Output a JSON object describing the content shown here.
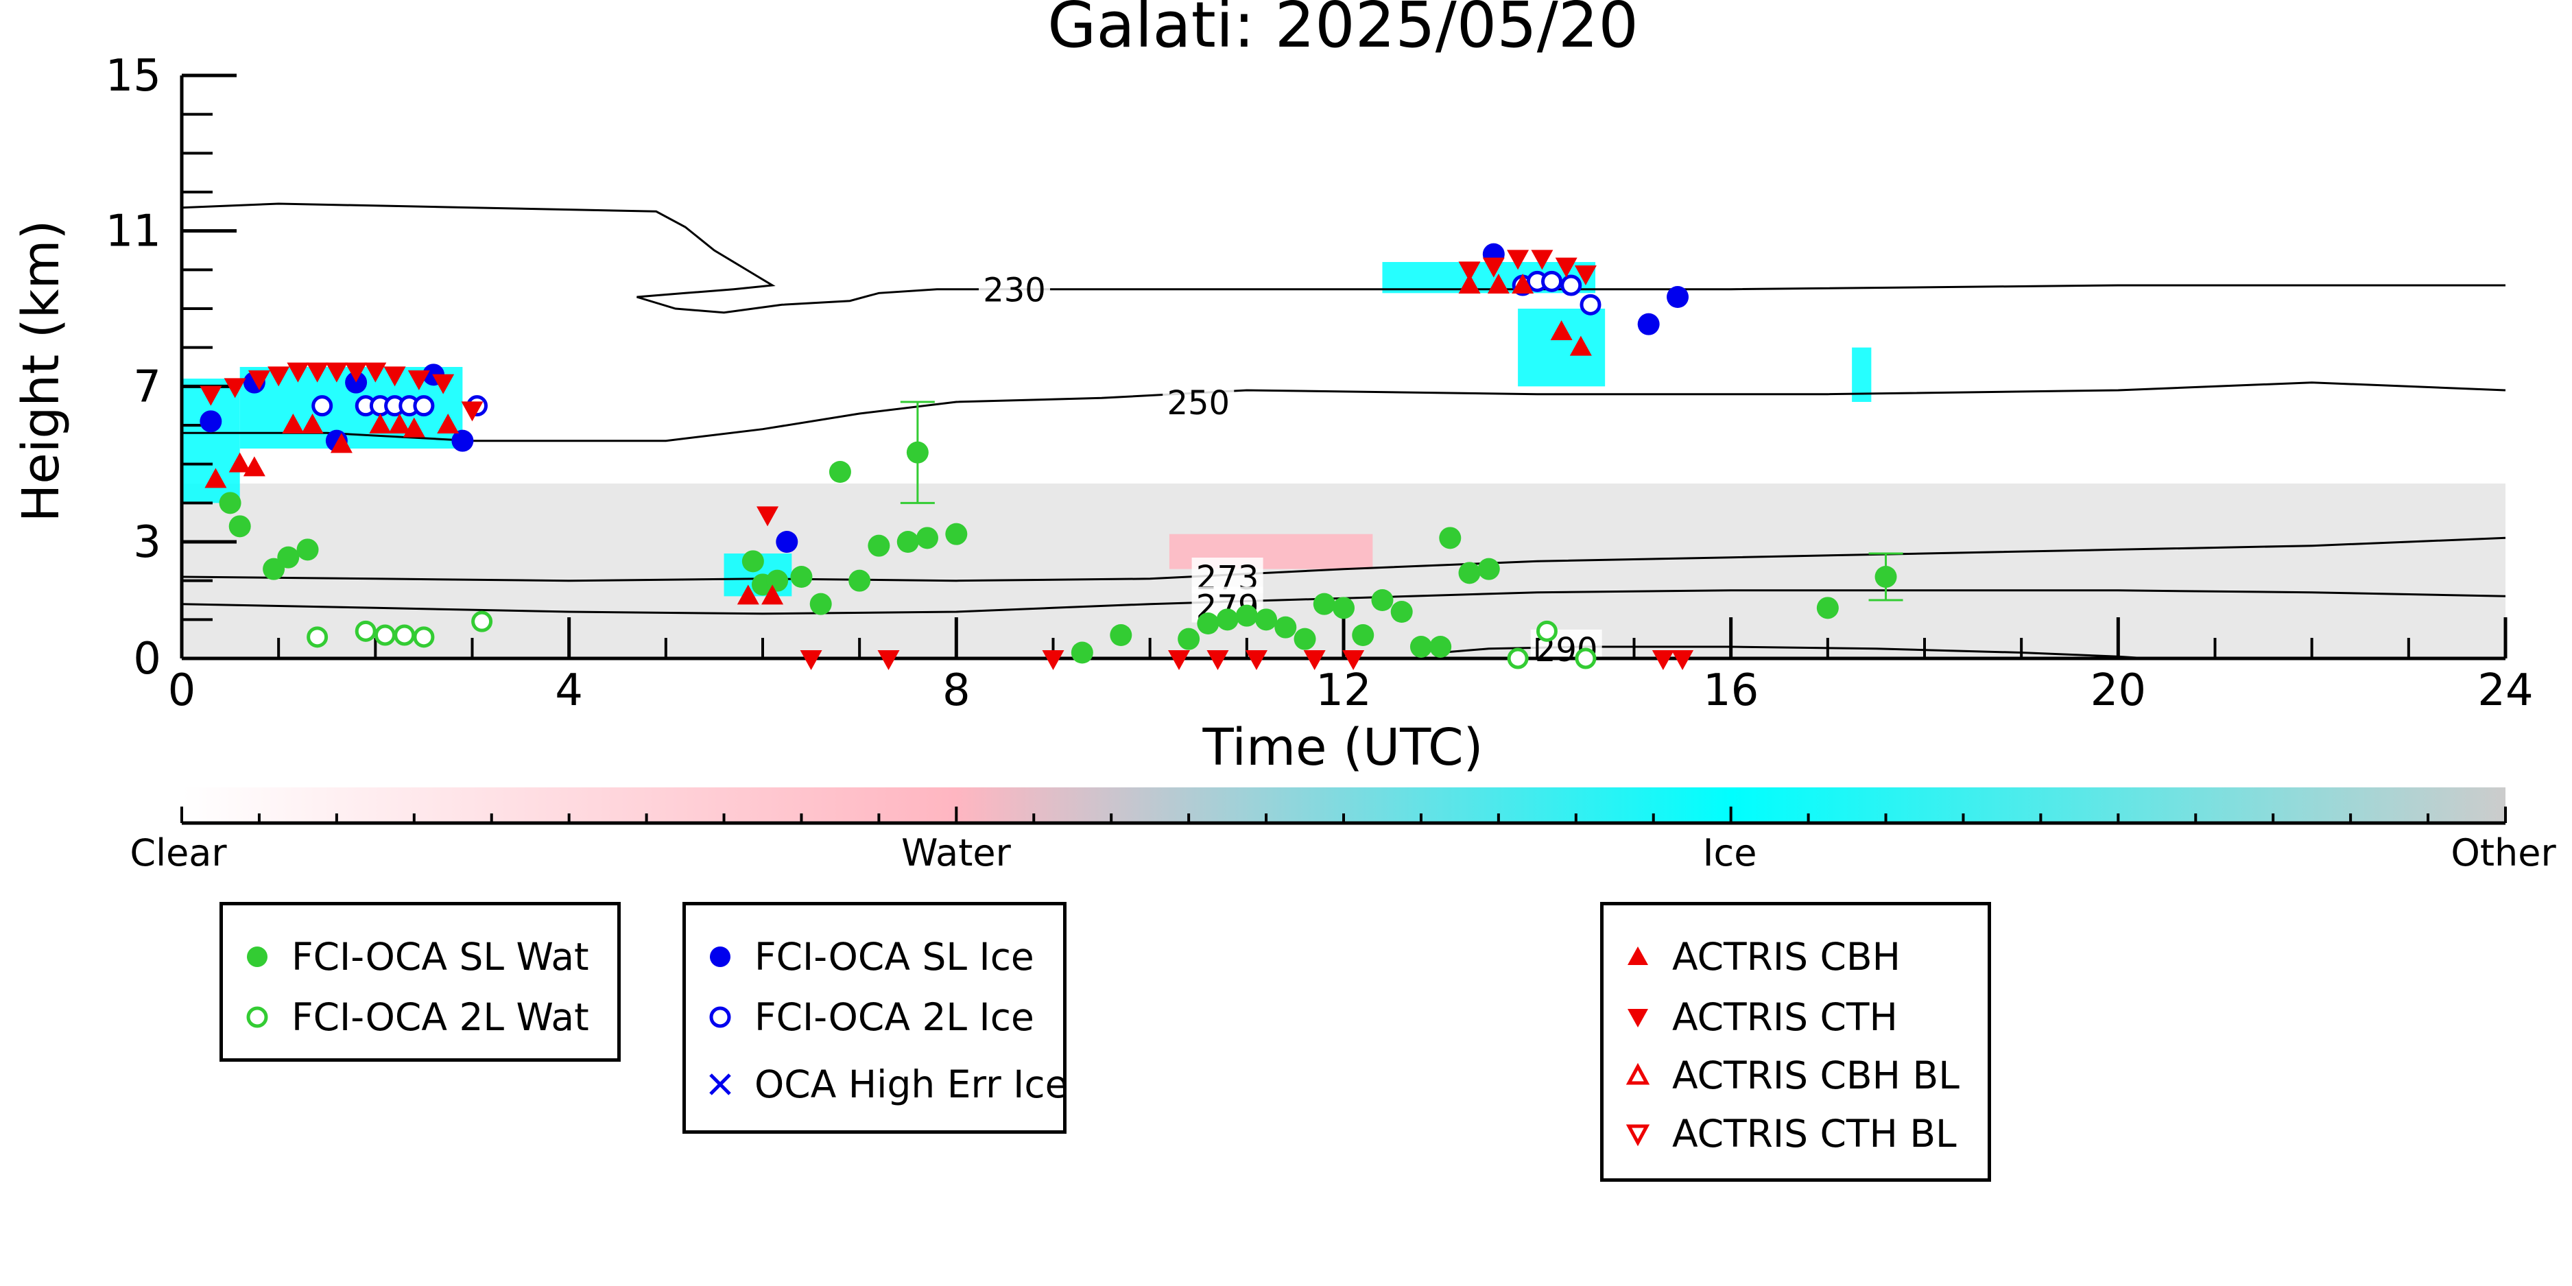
{
  "chart_data": {
    "type": "scatter",
    "title": "Galati: 2025/05/20",
    "xlabel": "Time (UTC)",
    "ylabel": "Height (km)",
    "xlim": [
      0,
      24
    ],
    "ylim": [
      0,
      15
    ],
    "x_ticks": [
      "0",
      "4",
      "8",
      "12",
      "16",
      "20",
      "24"
    ],
    "y_ticks": [
      "0",
      "3",
      "7",
      "11",
      "15"
    ],
    "colorbar": {
      "labels": [
        "Clear",
        "Water",
        "Ice",
        "Other"
      ],
      "colors": [
        "#ffffff",
        "#ffb6c1",
        "#00ffff",
        "#cccccc"
      ]
    },
    "contours": [
      {
        "label": "230",
        "label_at": [
          8.6,
          9.5
        ],
        "points": [
          [
            0,
            11.6
          ],
          [
            1,
            11.7
          ],
          [
            3,
            11.6
          ],
          [
            4.9,
            11.5
          ],
          [
            5.2,
            11.1
          ],
          [
            5.5,
            10.5
          ],
          [
            5.9,
            9.9
          ],
          [
            6.1,
            9.6
          ],
          [
            5.7,
            9.5
          ],
          [
            5.2,
            9.4
          ],
          [
            4.7,
            9.3
          ],
          [
            5.1,
            9.0
          ],
          [
            5.6,
            8.9
          ],
          [
            6.2,
            9.1
          ],
          [
            6.9,
            9.2
          ],
          [
            7.2,
            9.4
          ],
          [
            7.8,
            9.5
          ],
          [
            12,
            9.5
          ],
          [
            16,
            9.5
          ],
          [
            20,
            9.6
          ],
          [
            24,
            9.6
          ]
        ]
      },
      {
        "label": "250",
        "label_at": [
          10.5,
          6.6
        ],
        "points": [
          [
            0,
            5.8
          ],
          [
            1.5,
            5.8
          ],
          [
            3,
            5.6
          ],
          [
            4,
            5.6
          ],
          [
            5,
            5.6
          ],
          [
            6,
            5.9
          ],
          [
            7,
            6.3
          ],
          [
            8,
            6.6
          ],
          [
            9.5,
            6.7
          ],
          [
            11,
            6.9
          ],
          [
            14,
            6.8
          ],
          [
            17,
            6.8
          ],
          [
            20,
            6.9
          ],
          [
            22,
            7.1
          ],
          [
            24,
            6.9
          ]
        ]
      },
      {
        "label": "273",
        "label_at": [
          10.8,
          2.1
        ],
        "points": [
          [
            0,
            2.1
          ],
          [
            2,
            2.05
          ],
          [
            4,
            2.0
          ],
          [
            6,
            2.05
          ],
          [
            8,
            2.0
          ],
          [
            10,
            2.05
          ],
          [
            12,
            2.3
          ],
          [
            14,
            2.5
          ],
          [
            16,
            2.6
          ],
          [
            18,
            2.7
          ],
          [
            20,
            2.8
          ],
          [
            22,
            2.9
          ],
          [
            23,
            3.0
          ],
          [
            24,
            3.1
          ]
        ]
      },
      {
        "label": "279",
        "label_at": [
          10.8,
          1.35
        ],
        "points": [
          [
            0,
            1.4
          ],
          [
            2,
            1.3
          ],
          [
            4,
            1.2
          ],
          [
            6,
            1.15
          ],
          [
            8,
            1.2
          ],
          [
            9,
            1.3
          ],
          [
            10,
            1.4
          ],
          [
            12,
            1.55
          ],
          [
            14,
            1.7
          ],
          [
            16,
            1.75
          ],
          [
            18,
            1.75
          ],
          [
            20,
            1.75
          ],
          [
            22,
            1.7
          ],
          [
            24,
            1.6
          ]
        ]
      },
      {
        "label": "290",
        "label_at": [
          14.3,
          0.25
        ],
        "points": [
          [
            13,
            0.15
          ],
          [
            13.5,
            0.25
          ],
          [
            14.5,
            0.3
          ],
          [
            16,
            0.3
          ],
          [
            17.5,
            0.25
          ],
          [
            19,
            0.15
          ],
          [
            20,
            0.05
          ],
          [
            20.3,
            0.0
          ]
        ]
      }
    ],
    "series": [
      {
        "name": "FCI-OCA SL Wat",
        "color": "#33cc33",
        "marker": "filled-circle",
        "points": [
          [
            0.5,
            4.0,
            0
          ],
          [
            0.6,
            3.4,
            0
          ],
          [
            0.95,
            2.3,
            0
          ],
          [
            1.1,
            2.6,
            0
          ],
          [
            1.3,
            2.8,
            0
          ],
          [
            5.9,
            2.5,
            0
          ],
          [
            6.0,
            1.9,
            0
          ],
          [
            6.15,
            2.0,
            0
          ],
          [
            6.4,
            2.1,
            0
          ],
          [
            6.6,
            1.4,
            0
          ],
          [
            6.8,
            4.8,
            0
          ],
          [
            7.0,
            2.0,
            0
          ],
          [
            7.2,
            2.9,
            0
          ],
          [
            7.5,
            3.0,
            0
          ],
          [
            7.6,
            5.3,
            1.3
          ],
          [
            7.7,
            3.1,
            0
          ],
          [
            8.0,
            3.2,
            0
          ],
          [
            9.3,
            0.15,
            0
          ],
          [
            9.7,
            0.6,
            0
          ],
          [
            10.4,
            0.5,
            0
          ],
          [
            10.6,
            0.9,
            0
          ],
          [
            10.8,
            1.0,
            0
          ],
          [
            11.0,
            1.1,
            0
          ],
          [
            11.2,
            1.0,
            0
          ],
          [
            11.4,
            0.8,
            0
          ],
          [
            11.6,
            0.5,
            0
          ],
          [
            11.8,
            1.4,
            0
          ],
          [
            12.0,
            1.3,
            0
          ],
          [
            12.2,
            0.6,
            0
          ],
          [
            12.4,
            1.5,
            0
          ],
          [
            12.6,
            1.2,
            0
          ],
          [
            12.8,
            0.3,
            0
          ],
          [
            13.0,
            0.3,
            0
          ],
          [
            13.1,
            3.1,
            0
          ],
          [
            13.3,
            2.2,
            0
          ],
          [
            13.5,
            2.3,
            0
          ],
          [
            17.0,
            1.3,
            0
          ],
          [
            17.6,
            2.1,
            0.6
          ]
        ]
      },
      {
        "name": "FCI-OCA 2L Wat",
        "color": "#33cc33",
        "marker": "open-circle",
        "points": [
          [
            1.4,
            0.55
          ],
          [
            1.9,
            0.7
          ],
          [
            2.1,
            0.6
          ],
          [
            2.3,
            0.6
          ],
          [
            2.5,
            0.55
          ],
          [
            3.1,
            0.95
          ],
          [
            13.8,
            0.0
          ],
          [
            14.1,
            0.7
          ],
          [
            14.5,
            0.0
          ]
        ]
      },
      {
        "name": "FCI-OCA SL Ice",
        "color": "#0000ee",
        "marker": "filled-circle",
        "points": [
          [
            0.3,
            6.1
          ],
          [
            0.75,
            7.1
          ],
          [
            1.6,
            5.6
          ],
          [
            1.8,
            7.1
          ],
          [
            2.6,
            7.3
          ],
          [
            2.9,
            5.6
          ],
          [
            6.25,
            3.0
          ],
          [
            13.55,
            10.4
          ],
          [
            15.15,
            8.6
          ],
          [
            15.45,
            9.3
          ]
        ]
      },
      {
        "name": "FCI-OCA 2L Ice",
        "color": "#0000ee",
        "marker": "open-circle",
        "points": [
          [
            1.45,
            6.5
          ],
          [
            1.9,
            6.5
          ],
          [
            2.05,
            6.5
          ],
          [
            2.2,
            6.5
          ],
          [
            2.35,
            6.5
          ],
          [
            2.5,
            6.5
          ],
          [
            3.05,
            6.5
          ],
          [
            13.85,
            9.6
          ],
          [
            14.0,
            9.7
          ],
          [
            14.15,
            9.7
          ],
          [
            14.35,
            9.6
          ],
          [
            14.55,
            9.1
          ]
        ]
      },
      {
        "name": "OCA High Err Ice",
        "color": "#0000ee",
        "marker": "x",
        "points": []
      },
      {
        "name": "ACTRIS CBH",
        "color": "#ee0000",
        "marker": "triangle-up",
        "points": [
          [
            0.35,
            4.6
          ],
          [
            0.6,
            5.0
          ],
          [
            0.75,
            4.9
          ],
          [
            1.15,
            6.0
          ],
          [
            1.35,
            6.0
          ],
          [
            1.65,
            5.5
          ],
          [
            2.05,
            6.0
          ],
          [
            2.25,
            6.0
          ],
          [
            2.4,
            5.9
          ],
          [
            2.75,
            6.0
          ],
          [
            5.85,
            1.6
          ],
          [
            6.1,
            1.6
          ],
          [
            13.3,
            9.6
          ],
          [
            13.6,
            9.6
          ],
          [
            13.85,
            9.6
          ],
          [
            14.25,
            8.4
          ],
          [
            14.45,
            8.0
          ]
        ]
      },
      {
        "name": "ACTRIS CTH",
        "color": "#ee0000",
        "marker": "triangle-down",
        "points": [
          [
            0.3,
            6.8
          ],
          [
            0.55,
            7.0
          ],
          [
            0.8,
            7.2
          ],
          [
            1.0,
            7.3
          ],
          [
            1.2,
            7.4
          ],
          [
            1.4,
            7.4
          ],
          [
            1.6,
            7.4
          ],
          [
            1.8,
            7.4
          ],
          [
            2.0,
            7.4
          ],
          [
            2.2,
            7.3
          ],
          [
            2.45,
            7.2
          ],
          [
            2.7,
            7.1
          ],
          [
            3.0,
            6.4
          ],
          [
            6.05,
            3.7
          ],
          [
            6.5,
            0.0
          ],
          [
            7.3,
            0.0
          ],
          [
            9.0,
            0.0
          ],
          [
            10.3,
            0.0
          ],
          [
            10.7,
            0.0
          ],
          [
            11.1,
            0.0
          ],
          [
            11.7,
            0.0
          ],
          [
            12.1,
            0.0
          ],
          [
            13.3,
            10.0
          ],
          [
            13.55,
            10.1
          ],
          [
            13.8,
            10.3
          ],
          [
            14.05,
            10.3
          ],
          [
            14.3,
            10.1
          ],
          [
            14.5,
            9.9
          ],
          [
            15.3,
            0.0
          ],
          [
            15.5,
            0.0
          ]
        ]
      },
      {
        "name": "ACTRIS CBH BL",
        "color": "#ee0000",
        "marker": "triangle-up-open",
        "points": []
      },
      {
        "name": "ACTRIS CTH BL",
        "color": "#ee0000",
        "marker": "triangle-down-open",
        "points": []
      }
    ],
    "cloud_regions": [
      {
        "class": "Ice",
        "color": "#00ffff",
        "box": [
          0.0,
          4.0,
          0.6,
          7.2
        ]
      },
      {
        "class": "Ice",
        "color": "#00ffff",
        "box": [
          0.6,
          5.4,
          2.9,
          7.5
        ]
      },
      {
        "class": "Ice",
        "color": "#00ffff",
        "box": [
          5.6,
          1.6,
          6.3,
          2.7
        ]
      },
      {
        "class": "Ice",
        "color": "#00ffff",
        "box": [
          12.4,
          9.4,
          14.6,
          10.2
        ]
      },
      {
        "class": "Ice",
        "color": "#00ffff",
        "box": [
          13.8,
          7.0,
          14.7,
          9.0
        ]
      },
      {
        "class": "Ice",
        "color": "#00ffff",
        "box": [
          17.25,
          6.6,
          17.45,
          8.0
        ]
      },
      {
        "class": "Water",
        "color": "#ffb6c1",
        "box": [
          10.2,
          2.3,
          12.3,
          3.2
        ]
      },
      {
        "class": "Other",
        "color": "#cccccc",
        "box": [
          0.0,
          0.0,
          24.0,
          4.5
        ]
      }
    ]
  },
  "legends": [
    {
      "items": [
        {
          "label": "FCI-OCA SL Wat",
          "marker": "filled-circle",
          "color": "#33cc33"
        },
        {
          "label": "FCI-OCA 2L Wat",
          "marker": "open-circle",
          "color": "#33cc33"
        }
      ]
    },
    {
      "items": [
        {
          "label": "FCI-OCA SL Ice",
          "marker": "filled-circle",
          "color": "#0000ee"
        },
        {
          "label": "FCI-OCA 2L Ice",
          "marker": "open-circle",
          "color": "#0000ee"
        },
        {
          "label": "OCA High Err Ice",
          "marker": "x",
          "color": "#0000ee"
        }
      ]
    },
    {
      "items": [
        {
          "label": "ACTRIS CBH",
          "marker": "triangle-up",
          "color": "#ee0000"
        },
        {
          "label": "ACTRIS CTH",
          "marker": "triangle-down",
          "color": "#ee0000"
        },
        {
          "label": "ACTRIS CBH BL",
          "marker": "triangle-up-open",
          "color": "#ee0000"
        },
        {
          "label": "ACTRIS CTH BL",
          "marker": "triangle-down-open",
          "color": "#ee0000"
        }
      ]
    }
  ]
}
